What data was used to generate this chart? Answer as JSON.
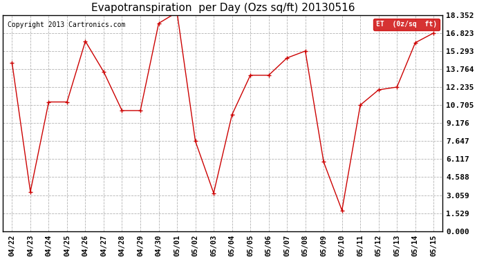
{
  "title": "Evapotranspiration  per Day (Ozs sq/ft) 20130516",
  "copyright": "Copyright 2013 Cartronics.com",
  "legend_label": "ET  (0z/sq  ft)",
  "x_labels": [
    "04/22",
    "04/23",
    "04/24",
    "04/25",
    "04/26",
    "04/27",
    "04/28",
    "04/29",
    "04/30",
    "05/01",
    "05/02",
    "05/03",
    "05/04",
    "05/05",
    "05/06",
    "05/07",
    "05/08",
    "05/09",
    "05/10",
    "05/11",
    "05/12",
    "05/13",
    "05/14",
    "05/15"
  ],
  "y_values": [
    14.294,
    3.353,
    10.97,
    10.97,
    16.128,
    13.529,
    10.235,
    10.235,
    17.647,
    18.588,
    7.647,
    3.235,
    9.882,
    13.235,
    13.235,
    14.706,
    15.294,
    5.882,
    1.765,
    10.706,
    12.0,
    12.235,
    16.0,
    16.823
  ],
  "line_color": "#cc0000",
  "marker_color": "#cc0000",
  "bg_color": "#ffffff",
  "grid_color": "#aaaaaa",
  "legend_bg": "#cc0000",
  "legend_text_color": "#ffffff",
  "y_ticks": [
    0.0,
    1.529,
    3.059,
    4.588,
    6.117,
    7.647,
    9.176,
    10.705,
    12.235,
    13.764,
    15.293,
    16.823,
    18.352
  ],
  "ylim": [
    0.0,
    18.352
  ],
  "title_fontsize": 11,
  "tick_fontsize": 7.5,
  "ytick_fontsize": 8,
  "copyright_fontsize": 7
}
